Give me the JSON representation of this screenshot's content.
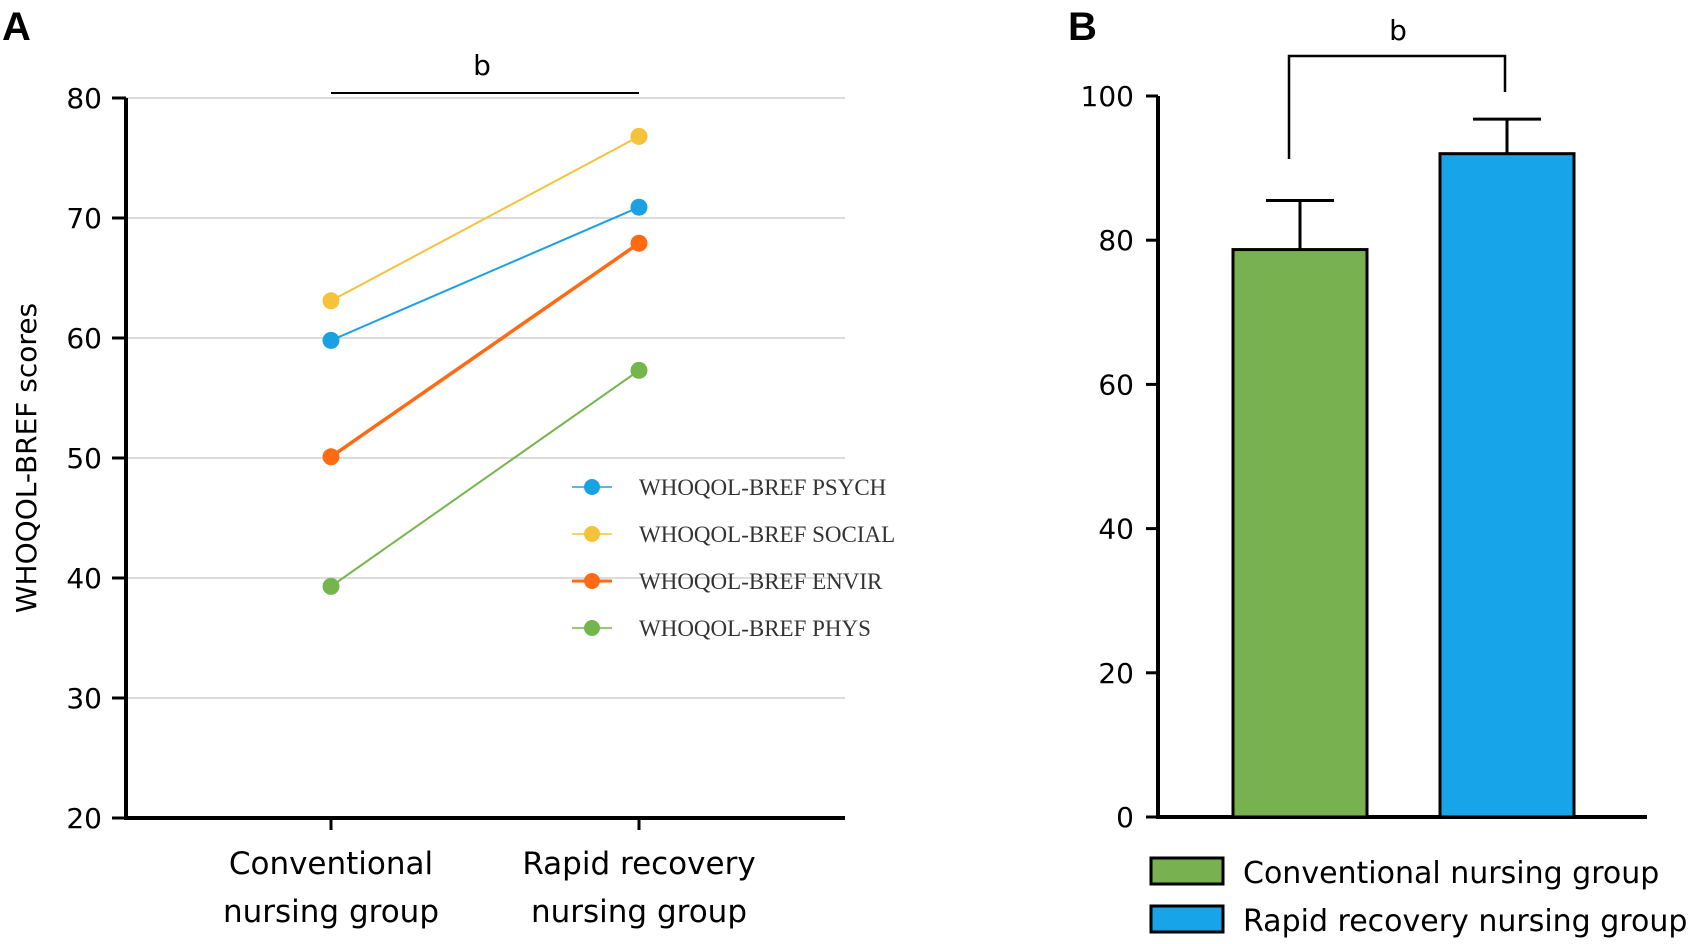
{
  "panels": {
    "a": "A",
    "b": "B"
  },
  "colors": {
    "psych": "#1ba1e2",
    "social": "#f5c23a",
    "envir": "#ff6a13",
    "phys": "#74b64b",
    "bar_conventional": "#78b150",
    "bar_rapid": "#18a4e9",
    "grid": "#d0d0d0"
  },
  "chart_data": [
    {
      "type": "line",
      "panel": "A",
      "ylabel": "WHOQOL-BREF scores",
      "ylim": [
        20,
        80
      ],
      "yticks": [
        20,
        30,
        40,
        50,
        60,
        70,
        80
      ],
      "categories": [
        [
          "Conventional",
          "nursing group"
        ],
        [
          "Rapid recovery",
          "nursing group"
        ]
      ],
      "grid": true,
      "legend_position": "right-middle",
      "significance": "b",
      "series": [
        {
          "name": "WHOQOL-BREF PSYCH",
          "values": [
            59.8,
            70.9
          ],
          "color": "#1ba1e2"
        },
        {
          "name": "WHOQOL-BREF SOCIAL",
          "values": [
            63.1,
            76.8
          ],
          "color": "#f5c23a"
        },
        {
          "name": "WHOQOL-BREF ENVIR",
          "values": [
            50.1,
            67.9
          ],
          "color": "#ff6a13"
        },
        {
          "name": "WHOQOL-BREF PHYS",
          "values": [
            39.3,
            57.3
          ],
          "color": "#74b64b"
        }
      ]
    },
    {
      "type": "bar",
      "panel": "B",
      "ylim": [
        0,
        100
      ],
      "yticks": [
        0,
        20,
        40,
        60,
        80,
        100
      ],
      "categories": [
        "Conventional nursing group",
        "Rapid recovery nursing group"
      ],
      "values": [
        78.7,
        92.0
      ],
      "error": [
        6.8,
        4.8
      ],
      "colors": [
        "#78b150",
        "#18a4e9"
      ],
      "legend_position": "bottom",
      "significance": "b"
    }
  ]
}
